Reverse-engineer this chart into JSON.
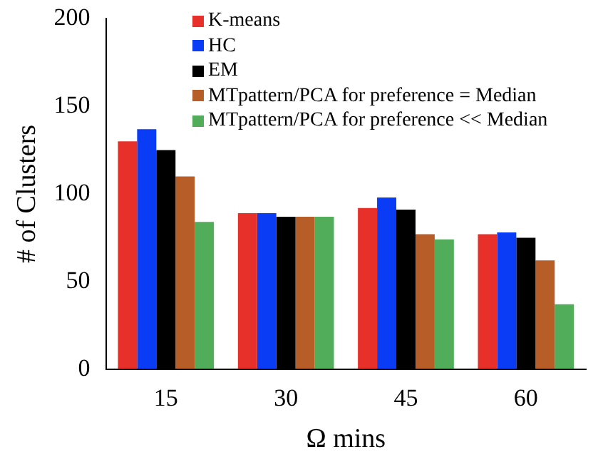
{
  "chart_data": {
    "type": "bar",
    "xlabel": "Ω mins",
    "ylabel": "# of Clusters",
    "categories": [
      "15",
      "30",
      "45",
      "60"
    ],
    "series": [
      {
        "name": "K-means",
        "color": "#e8302a",
        "values": [
          130,
          89,
          92,
          77
        ]
      },
      {
        "name": "HC",
        "color": "#0a3cf5",
        "values": [
          137,
          89,
          98,
          78
        ]
      },
      {
        "name": "EM",
        "color": "#000000",
        "values": [
          125,
          87,
          91,
          75
        ]
      },
      {
        "name": "MTpattern/PCA for preference = Median",
        "color": "#b65d28",
        "values": [
          110,
          87,
          77,
          62
        ]
      },
      {
        "name": "MTpattern/PCA for preference << Median",
        "color": "#52ad5a",
        "values": [
          84,
          87,
          74,
          37
        ]
      }
    ],
    "ylim": [
      0,
      200
    ],
    "yticks": [
      0,
      50,
      100,
      150,
      200
    ],
    "grid": false,
    "legend": "top right"
  }
}
